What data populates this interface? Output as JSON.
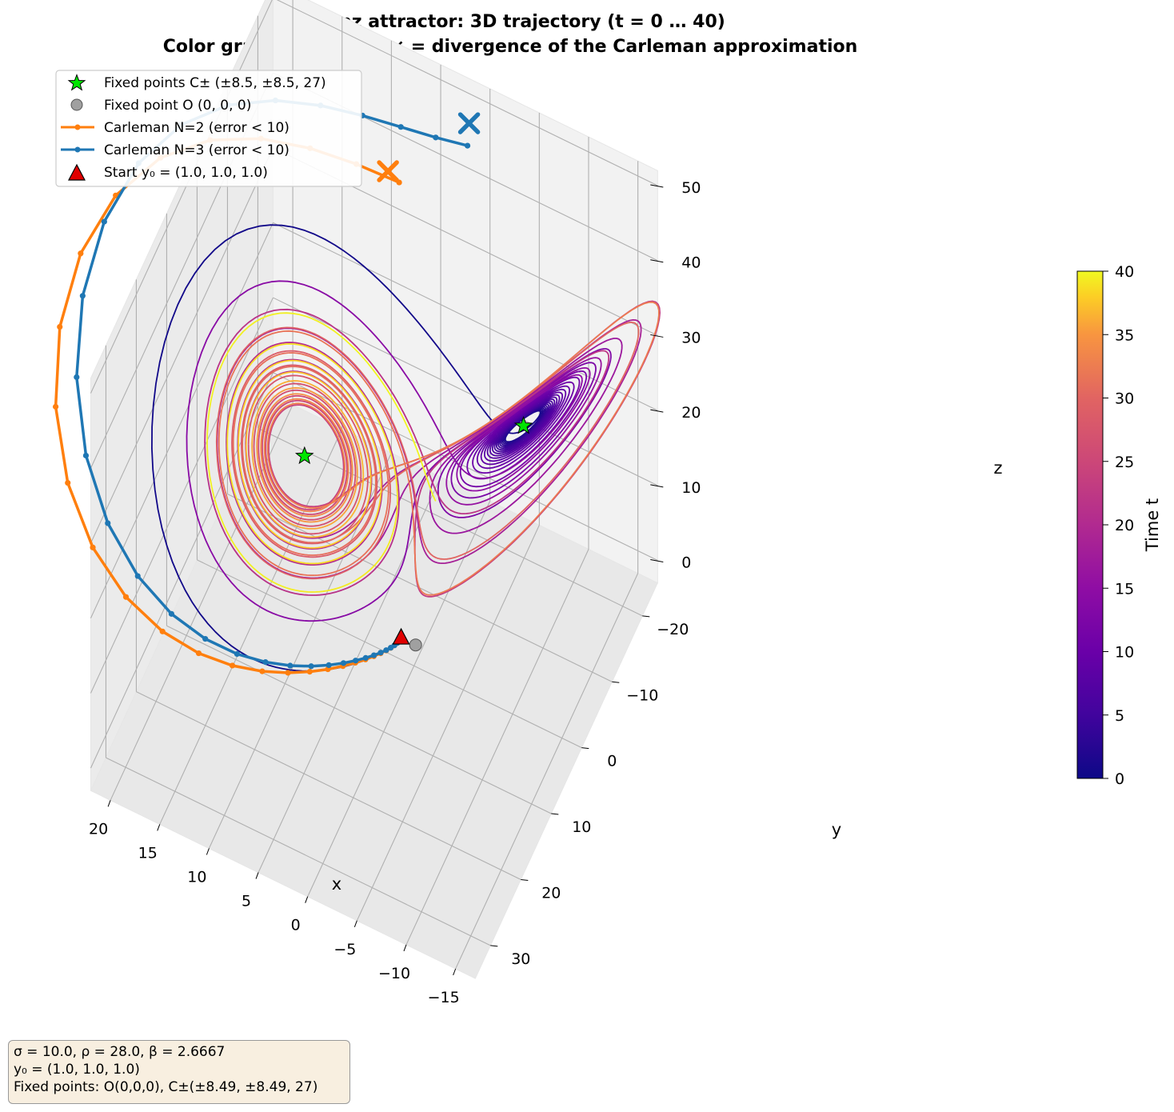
{
  "chart_data": {
    "type": "line3d",
    "title": "Lorenz attractor: 3D trajectory  (t = 0 … 40)",
    "subtitle": "Color gradient = time,  × = divergence of the Carleman approximation",
    "xlabel": "x",
    "ylabel": "y",
    "zlabel": "z",
    "x_ticks": [
      "20",
      "15",
      "10",
      "5",
      "0",
      "−5",
      "−10",
      "−15"
    ],
    "y_ticks": [
      "−20",
      "−10",
      "0",
      "10",
      "20",
      "30"
    ],
    "z_ticks": [
      "0",
      "10",
      "20",
      "30",
      "40",
      "50"
    ],
    "xlim": [
      -17,
      22
    ],
    "ylim": [
      -25,
      35
    ],
    "zlim": [
      -3,
      52
    ],
    "grid": true,
    "colorbar": {
      "label": "Time  t",
      "ticks": [
        "0",
        "5",
        "10",
        "15",
        "20",
        "25",
        "30",
        "35",
        "40"
      ],
      "range": [
        0,
        40
      ],
      "colormap": "plasma"
    },
    "legend": {
      "position": "top-left",
      "entries": [
        {
          "label": "Fixed points  C± (±8.5, ±8.5, 27)",
          "marker": "star",
          "color": "#00e600"
        },
        {
          "label": "Fixed point  O (0, 0, 0)",
          "marker": "circle",
          "color": "#a0a0a0"
        },
        {
          "label": "Carleman N=2  (error < 10)",
          "marker": "line-dot",
          "color": "#ff7f0e"
        },
        {
          "label": "Carleman N=3  (error < 10)",
          "marker": "line-dot",
          "color": "#1f77b4"
        },
        {
          "label": "Start  y₀ = (1.0, 1.0, 1.0)",
          "marker": "triangle",
          "color": "#e00000"
        }
      ]
    },
    "series": [
      {
        "name": "Fixed points  C± (±8.5, ±8.5, 27)",
        "points": [
          [
            8.49,
            8.49,
            27
          ],
          [
            -8.49,
            -8.49,
            27
          ]
        ]
      },
      {
        "name": "Fixed point  O (0, 0, 0)",
        "points": [
          [
            0,
            0,
            0
          ]
        ]
      },
      {
        "name": "Start  y₀ = (1.0, 1.0, 1.0)",
        "points": [
          [
            1.0,
            1.0,
            1.0
          ]
        ]
      }
    ],
    "lorenz_params": {
      "sigma": 10.0,
      "rho": 28.0,
      "beta": 2.6667,
      "y0": [
        1.0,
        1.0,
        1.0
      ],
      "t_end": 40
    }
  },
  "annotation": {
    "line1": "σ = 10.0, ρ = 28.0, β = 2.6667",
    "line2": "y₀ = (1.0, 1.0, 1.0)",
    "line3": "Fixed points: O(0,0,0), C±(±8.49, ±8.49, 27)"
  }
}
